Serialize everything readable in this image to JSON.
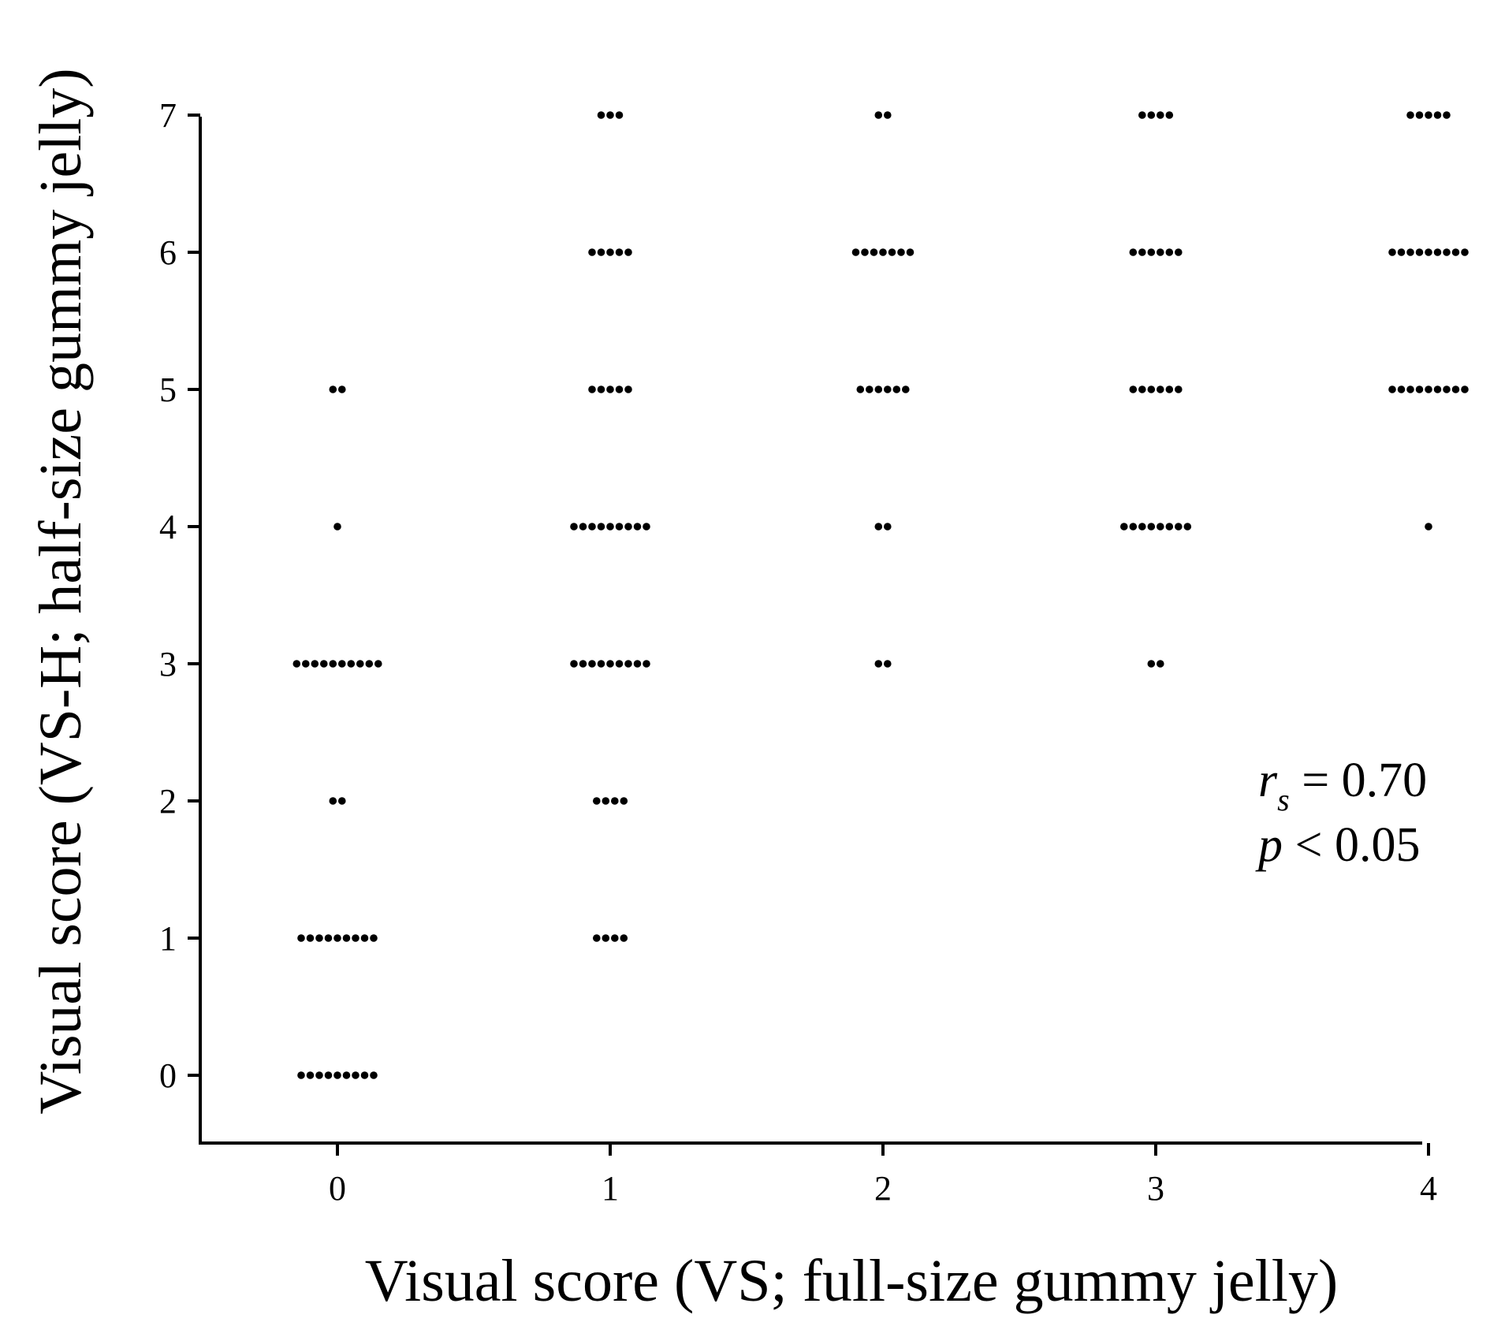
{
  "chart_data": {
    "type": "scatter",
    "title": "",
    "xlabel": "Visual score (VS; full-size gummy jelly)",
    "ylabel": "Visual score (VS-H; half-size gummy jelly)",
    "xlim": [
      -0.5,
      4
    ],
    "ylim": [
      -0.5,
      7
    ],
    "x_ticks": [
      "0",
      "1",
      "2",
      "3",
      "4"
    ],
    "y_ticks": [
      "0",
      "1",
      "2",
      "3",
      "4",
      "5",
      "6",
      "7"
    ],
    "grid": false,
    "annotation": {
      "r_symbol": "r",
      "r_subscript": "s",
      "r_value": " = 0.70",
      "p_symbol": "p",
      "p_value": " < 0.05"
    },
    "counts": [
      {
        "x": 0,
        "y": 0,
        "n": 9
      },
      {
        "x": 0,
        "y": 1,
        "n": 9
      },
      {
        "x": 0,
        "y": 2,
        "n": 2
      },
      {
        "x": 0,
        "y": 3,
        "n": 10
      },
      {
        "x": 0,
        "y": 4,
        "n": 1
      },
      {
        "x": 0,
        "y": 5,
        "n": 2
      },
      {
        "x": 1,
        "y": 1,
        "n": 4
      },
      {
        "x": 1,
        "y": 2,
        "n": 4
      },
      {
        "x": 1,
        "y": 3,
        "n": 9
      },
      {
        "x": 1,
        "y": 4,
        "n": 9
      },
      {
        "x": 1,
        "y": 5,
        "n": 5
      },
      {
        "x": 1,
        "y": 6,
        "n": 5
      },
      {
        "x": 1,
        "y": 7,
        "n": 3
      },
      {
        "x": 2,
        "y": 3,
        "n": 2
      },
      {
        "x": 2,
        "y": 4,
        "n": 2
      },
      {
        "x": 2,
        "y": 5,
        "n": 6
      },
      {
        "x": 2,
        "y": 6,
        "n": 7
      },
      {
        "x": 2,
        "y": 7,
        "n": 2
      },
      {
        "x": 3,
        "y": 3,
        "n": 2
      },
      {
        "x": 3,
        "y": 4,
        "n": 8
      },
      {
        "x": 3,
        "y": 5,
        "n": 6
      },
      {
        "x": 3,
        "y": 6,
        "n": 6
      },
      {
        "x": 3,
        "y": 7,
        "n": 4
      },
      {
        "x": 4,
        "y": 4,
        "n": 1
      },
      {
        "x": 4,
        "y": 5,
        "n": 9
      },
      {
        "x": 4,
        "y": 6,
        "n": 9
      },
      {
        "x": 4,
        "y": 7,
        "n": 5
      }
    ]
  }
}
